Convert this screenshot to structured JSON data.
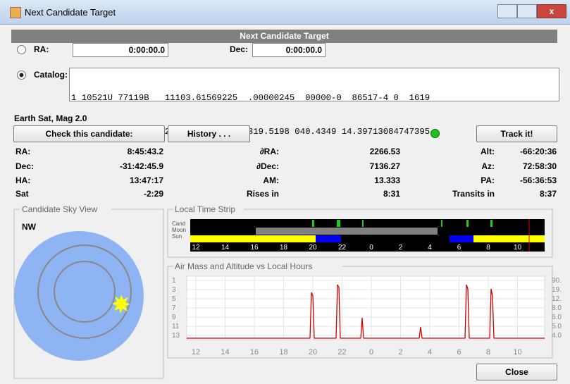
{
  "window": {
    "title": "Next Candidate Target"
  },
  "header": {
    "title": "Next Candidate Target"
  },
  "coords": {
    "ra_label": "RA:",
    "ra_value": "0:00:00.0",
    "dec_label": "Dec:",
    "dec_value": "0:00:00.0"
  },
  "catalog": {
    "label": "Catalog:",
    "lines": [
      "1 10521U 77119B   11103.61569225  .00000245  00000-0  86517-4 0  1619",
      "2 10521 074.0263 120.0926 0021586 319.5198 040.4349 14.39713084747395"
    ]
  },
  "object": "Earth Sat, Mag 2.0",
  "buttons": {
    "check": "Check this candidate:",
    "history": "History . . .",
    "track": "Track it!",
    "close": "Close"
  },
  "grid": {
    "rows": [
      [
        "RA:",
        "8:45:43.2",
        "∂RA:",
        "2266.53",
        "Alt:",
        "-66:20:36"
      ],
      [
        "Dec:",
        "-31:42:45.9",
        "∂Dec:",
        "7136.27",
        "Az:",
        "72:58:30"
      ],
      [
        "HA:",
        "13:47:17",
        "AM:",
        "13.333",
        "PA:",
        "-56:36:53"
      ],
      [
        "Sat",
        "-2:29",
        "Rises in",
        "8:31",
        "Transits in",
        "8:37"
      ]
    ]
  },
  "sky_view": {
    "title": "Candidate Sky View",
    "direction": "NW"
  },
  "time_strip": {
    "title": "Local Time Strip",
    "rows": [
      "Cand",
      "Moon",
      "Sun"
    ],
    "hours": [
      "12",
      "14",
      "16",
      "18",
      "20",
      "22",
      "0",
      "2",
      "4",
      "6",
      "8",
      "10"
    ]
  },
  "air_mass": {
    "title": "Air Mass and Altitude vs Local Hours",
    "left_ticks": [
      "1",
      "3",
      "5",
      "7",
      "9",
      "11",
      "13"
    ],
    "right_ticks": [
      "90.",
      "19.",
      "12.",
      "8.0",
      "6.0",
      "5.0",
      "4.0"
    ],
    "hours": [
      "12",
      "14",
      "16",
      "18",
      "20",
      "22",
      "0",
      "2",
      "4",
      "6",
      "8",
      "10"
    ]
  }
}
